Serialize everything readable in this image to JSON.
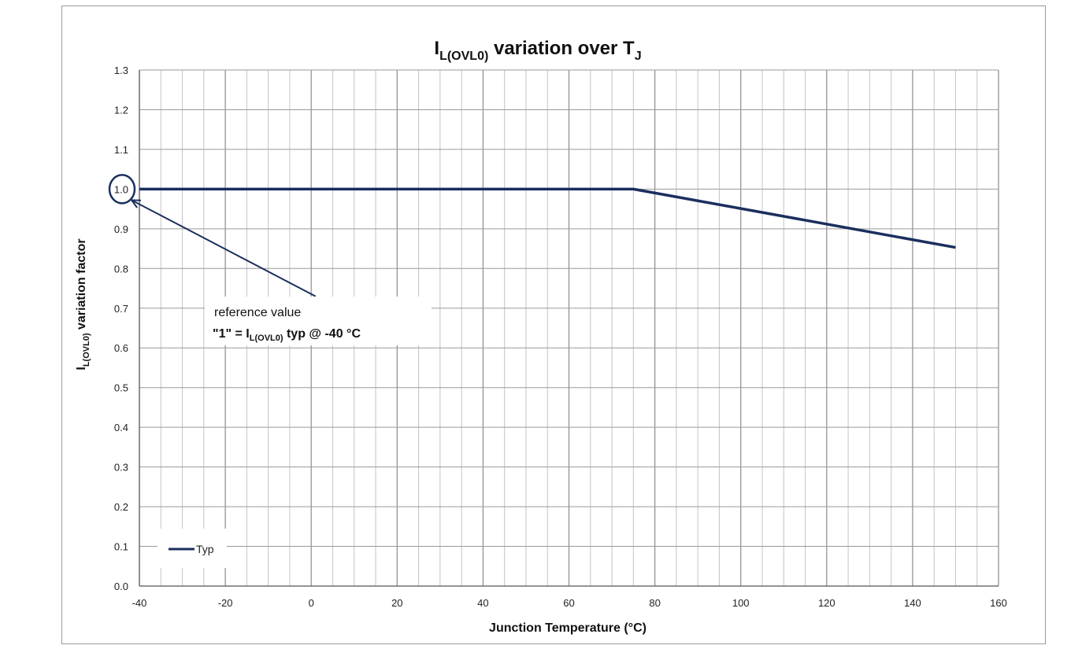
{
  "chart_data": {
    "type": "line",
    "title": {
      "main": "I",
      "sub": "L(OVL0)",
      "mid": " variation over T",
      "sub2": "J"
    },
    "ylabel": {
      "main": "I",
      "sub": "L(OVL0)",
      "rest": " variation factor"
    },
    "xlabel": "Junction Temperature (°C)",
    "xlim": [
      -40,
      160
    ],
    "ylim": [
      0.0,
      1.3
    ],
    "x_ticks": [
      "-40",
      "-20",
      "0",
      "20",
      "40",
      "60",
      "80",
      "100",
      "120",
      "140",
      "160"
    ],
    "y_ticks": [
      "0.0",
      "0.1",
      "0.2",
      "0.3",
      "0.4",
      "0.5",
      "0.6",
      "0.7",
      "0.8",
      "0.9",
      "1.0",
      "1.1",
      "1.2",
      "1.3"
    ],
    "grid": true,
    "series": [
      {
        "name": "Typ",
        "color": "#1b2f5e",
        "x": [
          -40,
          75,
          150
        ],
        "y": [
          1.0,
          1.0,
          0.853
        ]
      }
    ],
    "legend": {
      "placement": "bottom-left"
    },
    "annotation": {
      "line1": "reference value",
      "line2_pre": "\"1\" = I",
      "line2_sub": "L(OVL0)",
      "line2_post": " typ @ -40 °C",
      "target": {
        "x": -40,
        "y": 1.0
      },
      "from": {
        "x": 1,
        "y": 0.73
      }
    }
  }
}
